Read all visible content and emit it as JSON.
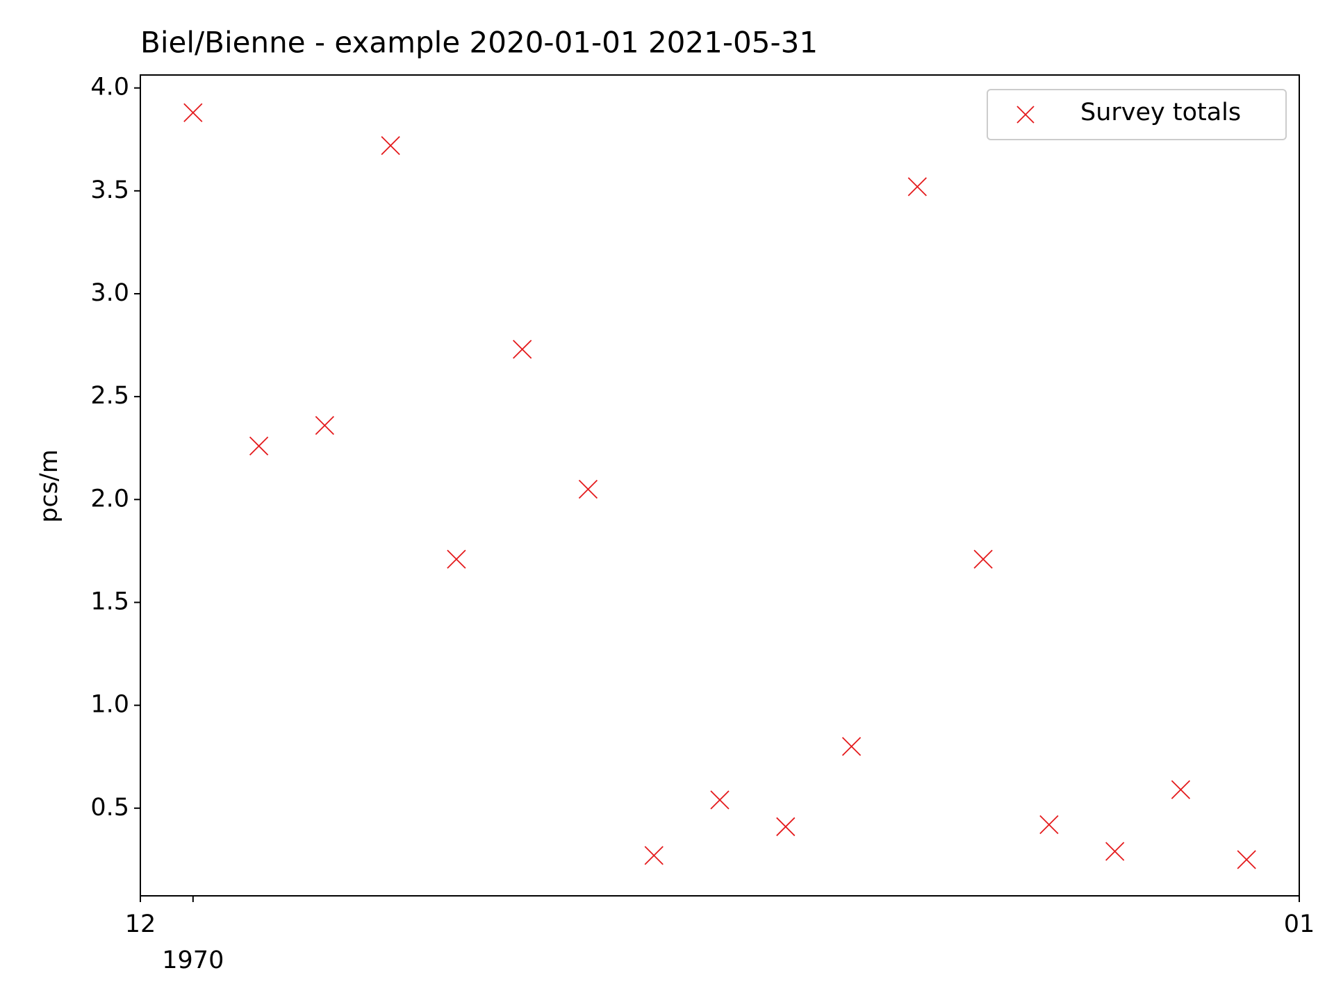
{
  "chart_data": {
    "type": "scatter",
    "title": "Biel/Bienne - example 2020-01-01 2021-05-31",
    "ylabel": "pcs/m",
    "series": [
      {
        "name": "Survey totals",
        "color": "#e41a1c",
        "marker": "x",
        "x": [
          0,
          1,
          2,
          3,
          4,
          5,
          6,
          7,
          8,
          9,
          10,
          11,
          12,
          13,
          14,
          15,
          16
        ],
        "values": [
          3.88,
          2.26,
          2.36,
          3.72,
          1.71,
          2.73,
          2.05,
          0.27,
          0.54,
          0.41,
          0.8,
          3.52,
          1.71,
          0.42,
          0.29,
          0.59,
          0.25
        ]
      }
    ],
    "xlim": [
      -0.8,
      16.8
    ],
    "xticks": [
      {
        "value": -0.8,
        "label": "12"
      },
      {
        "value": 0,
        "label": "1970"
      },
      {
        "value": 16.8,
        "label": "01"
      }
    ],
    "ylim": [
      0.074,
      4.063
    ],
    "yticks": [
      {
        "value": 0.5,
        "label": "0.5"
      },
      {
        "value": 1,
        "label": "1.0"
      },
      {
        "value": 1.5,
        "label": "1.5"
      },
      {
        "value": 2,
        "label": "2.0"
      },
      {
        "value": 2.5,
        "label": "2.5"
      },
      {
        "value": 3,
        "label": "3.0"
      },
      {
        "value": 3.5,
        "label": "3.5"
      },
      {
        "value": 4,
        "label": "4.0"
      }
    ],
    "grid": false,
    "legend": "upper right"
  }
}
